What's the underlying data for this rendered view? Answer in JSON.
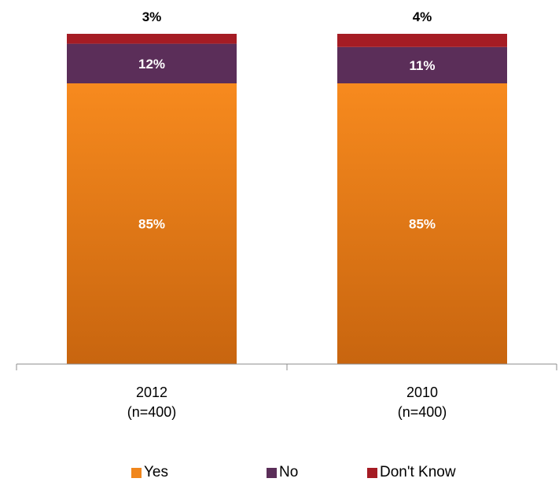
{
  "chart_data": {
    "type": "bar",
    "stacked": true,
    "categories": [
      {
        "label": "2012",
        "sublabel": "(n=400)"
      },
      {
        "label": "2010",
        "sublabel": "(n=400)"
      }
    ],
    "series": [
      {
        "name": "Yes",
        "values": [
          85,
          85
        ],
        "labels": [
          "85%",
          "85%"
        ],
        "color": "#f0861c",
        "color_dark": "#c8650f"
      },
      {
        "name": "No",
        "values": [
          12,
          11
        ],
        "labels": [
          "12%",
          "11%"
        ],
        "color": "#5b2e59"
      },
      {
        "name": "Don't Know",
        "values": [
          3,
          4
        ],
        "labels": [
          "3%",
          "4%"
        ],
        "color": "#a51c24"
      }
    ],
    "ylim": [
      0,
      100
    ],
    "grid": false,
    "legend_position": "bottom"
  }
}
